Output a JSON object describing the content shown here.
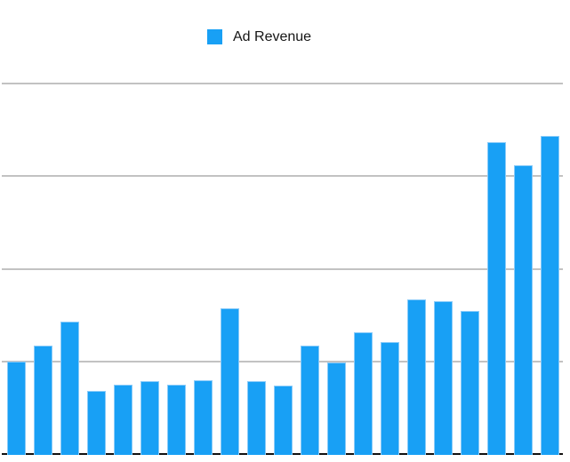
{
  "legend": {
    "label": "Ad Revenue"
  },
  "colors": {
    "background": "#FFFFFF",
    "bar_fill": "#18A0F5",
    "bar_edge": "#8ACBF9",
    "gridline": "#C2C2C2",
    "axis_line": "#111111",
    "legend_text": "#151515"
  },
  "chart_data": {
    "type": "bar",
    "title": "",
    "xlabel": "",
    "ylabel": "",
    "legend_entries": [
      "Ad Revenue"
    ],
    "legend_position": "top-center",
    "x_tick_labels_visible": false,
    "y_tick_labels_visible": false,
    "grid": true,
    "grid_step": 1,
    "ylim": [
      0,
      4
    ],
    "values_unit": "gridline-intervals (axis unlabeled, values estimated from gridlines)",
    "series": [
      {
        "name": "Ad Revenue",
        "values": [
          1.01,
          1.18,
          1.44,
          0.69,
          0.76,
          0.8,
          0.76,
          0.81,
          1.58,
          0.8,
          0.75,
          1.18,
          1.0,
          1.32,
          1.22,
          1.68,
          1.66,
          1.55,
          3.38,
          3.13,
          3.44
        ]
      }
    ]
  }
}
